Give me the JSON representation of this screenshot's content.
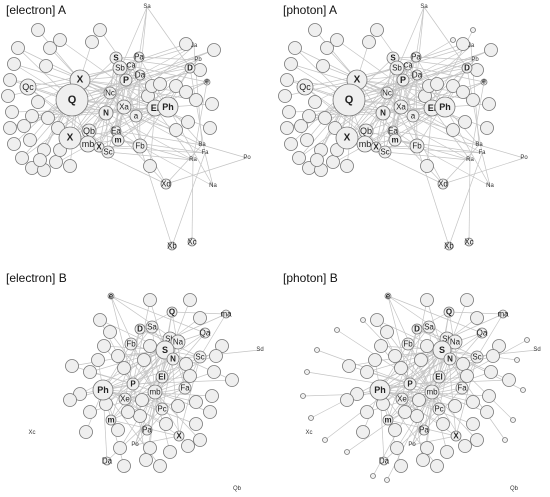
{
  "panels": [
    {
      "id": "electron-a",
      "title": "[electron] A",
      "labels": [
        "X",
        "Q",
        "Qc",
        "S",
        "Sb",
        "Pa",
        "Ca",
        "P",
        "Da",
        "Nc",
        "N",
        "F",
        "Xa",
        "a",
        "El",
        "Ph",
        "Ea",
        "m",
        "Qb",
        "mb",
        "Sc",
        "Fb",
        "Xd",
        "Xb",
        "Xc",
        "Sa",
        "Ja",
        "D",
        "e",
        "Pb",
        "Po",
        "Na",
        "Ra",
        "Fa",
        "Ba"
      ]
    },
    {
      "id": "photon-a",
      "title": "[photon] A",
      "labels": [
        "X",
        "Q",
        "Qc",
        "S",
        "Sb",
        "Pa",
        "P",
        "Da",
        "Nc",
        "N",
        "F",
        "Xa",
        "a",
        "El",
        "Ph",
        "Ea",
        "m",
        "Qb",
        "mb",
        "Sc",
        "Fb",
        "Xd",
        "Xb",
        "Xc",
        "Sa",
        "Ja",
        "D",
        "e",
        "Na",
        "Fa",
        "Ra",
        "Pa"
      ]
    },
    {
      "id": "electron-b",
      "title": "[electron] B",
      "labels": [
        "e",
        "D",
        "Sa",
        "Q",
        "Qa",
        "ma",
        "Fb",
        "Sb",
        "Na",
        "S",
        "N",
        "Sc",
        "P",
        "El",
        "Ph",
        "Xe",
        "mb",
        "Fa",
        "Pc",
        "m",
        "Pa",
        "X",
        "Da",
        "Po",
        "Xc",
        "Qb",
        "Sd"
      ]
    },
    {
      "id": "photon-b",
      "title": "[photon] B",
      "labels": [
        "e",
        "D",
        "Sa",
        "Q",
        "Qa",
        "ma",
        "Fb",
        "Sb",
        "Na",
        "S",
        "N",
        "Sc",
        "P",
        "El",
        "Ph",
        "Xe",
        "mb",
        "Fa",
        "Pc",
        "m",
        "Pa",
        "X",
        "Qb",
        "Sd",
        "Xb",
        "Po"
      ]
    }
  ]
}
